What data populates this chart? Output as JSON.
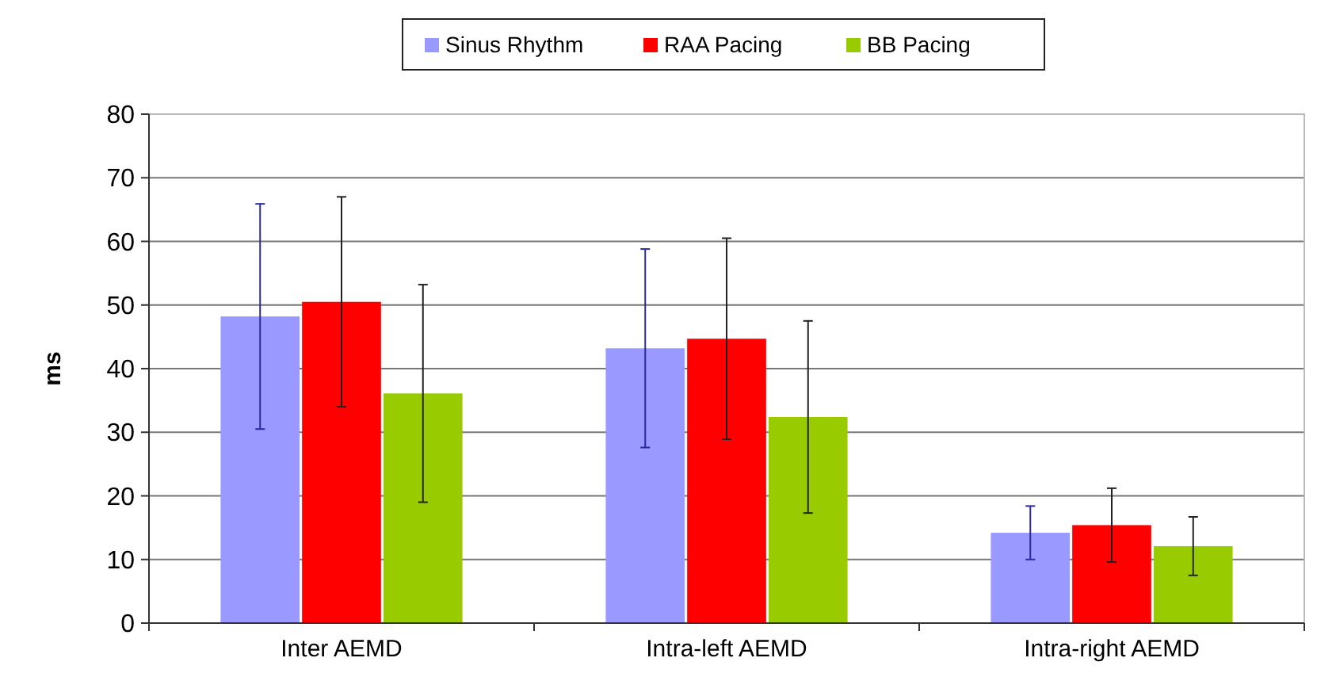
{
  "chart_data": {
    "type": "bar",
    "ylabel": "ms",
    "categories": [
      "Inter AEMD",
      "Intra-left AEMD",
      "Intra-right AEMD"
    ],
    "series": [
      {
        "name": "Sinus Rhythm",
        "color": "#9999ff",
        "values": [
          48.2,
          43.2,
          14.2
        ],
        "errors": [
          17.7,
          15.6,
          4.2
        ]
      },
      {
        "name": "RAA Pacing",
        "color": "#ff0000",
        "values": [
          50.5,
          44.7,
          15.4
        ],
        "errors": [
          16.5,
          15.8,
          5.8
        ]
      },
      {
        "name": "BB Pacing",
        "color": "#99cc00",
        "values": [
          36.1,
          32.4,
          12.1
        ],
        "errors": [
          17.1,
          15.1,
          4.6
        ]
      }
    ],
    "ylim": [
      0,
      80
    ],
    "yticks": [
      0,
      10,
      20,
      30,
      40,
      50,
      60,
      70,
      80
    ],
    "grid": "y",
    "legend": "top"
  }
}
